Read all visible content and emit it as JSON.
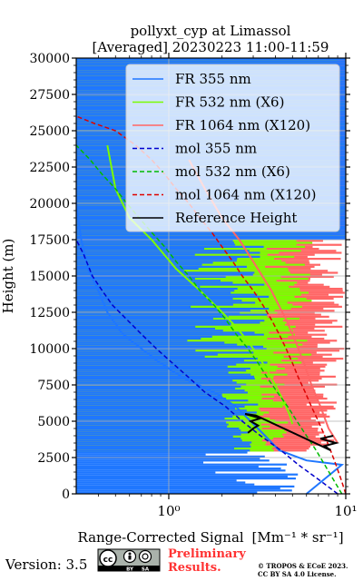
{
  "chart_data": {
    "type": "line",
    "title": "pollyxt_cyp at Limassol",
    "subtitle": "[Averaged] 20230223 11:00-11:59",
    "xlabel": "Range-Corrected Signal",
    "xlabel_unit": "[Mm⁻¹ * sr⁻¹]",
    "ylabel": "Height (m)",
    "xscale": "log",
    "xlim": [
      0.3,
      10
    ],
    "ylim": [
      0,
      30000
    ],
    "grid": true,
    "legend_position": "top-right",
    "x_ticks": [
      {
        "value": 1,
        "label": "10⁰"
      },
      {
        "value": 10,
        "label": "10¹"
      }
    ],
    "y_ticks": [
      0,
      2500,
      5000,
      7500,
      10000,
      12500,
      15000,
      17500,
      20000,
      22500,
      25000,
      27500,
      30000
    ],
    "y_tick_labels": [
      "0",
      "2500",
      "5000",
      "7500",
      "10000",
      "12500",
      "15000",
      "17500",
      "20000",
      "22500",
      "25000",
      "27500",
      "30000"
    ],
    "series": [
      {
        "name": "FR 355 nm",
        "color": "#1f77ff",
        "style": "solid",
        "points": [
          [
            6.0,
            0
          ],
          [
            9.5,
            2000
          ],
          [
            6.0,
            2300
          ],
          [
            4.2,
            3000
          ],
          [
            3.5,
            4000
          ],
          [
            2.9,
            5000
          ],
          [
            2.4,
            6000
          ],
          [
            1.8,
            7000
          ],
          [
            1.2,
            8000
          ],
          [
            0.9,
            9000
          ],
          [
            0.7,
            10000
          ],
          [
            0.55,
            11000
          ],
          [
            0.45,
            12500
          ],
          [
            0.4,
            14000
          ],
          [
            0.35,
            15500
          ],
          [
            0.32,
            17500
          ],
          [
            0.3,
            20000
          ],
          [
            0.3,
            25000
          ]
        ]
      },
      {
        "name": "FR 532 nm (X6)",
        "color": "#7cfc00",
        "style": "solid",
        "points": [
          [
            5.0,
            4800
          ],
          [
            4.8,
            5500
          ],
          [
            4.4,
            6500
          ],
          [
            4.0,
            7500
          ],
          [
            3.6,
            8500
          ],
          [
            3.2,
            9500
          ],
          [
            2.8,
            10500
          ],
          [
            2.4,
            11500
          ],
          [
            2.0,
            12500
          ],
          [
            1.5,
            14000
          ],
          [
            1.1,
            15500
          ],
          [
            0.8,
            17500
          ],
          [
            0.6,
            19000
          ],
          [
            0.5,
            21000
          ],
          [
            0.45,
            24000
          ]
        ]
      },
      {
        "name": "FR 1064 nm (X120)",
        "color": "#ff6666",
        "style": "solid",
        "points": [
          [
            9.0,
            3500
          ],
          [
            8.0,
            4500
          ],
          [
            7.2,
            6000
          ],
          [
            6.4,
            7500
          ],
          [
            5.8,
            9000
          ],
          [
            5.2,
            10500
          ],
          [
            4.6,
            12000
          ],
          [
            3.8,
            14000
          ],
          [
            3.0,
            16000
          ],
          [
            2.5,
            17500
          ],
          [
            2.0,
            19000
          ],
          [
            1.6,
            21000
          ],
          [
            1.3,
            23000
          ]
        ]
      },
      {
        "name": "mol 355 nm",
        "color": "#0000cc",
        "style": "dashed",
        "points": [
          [
            9.0,
            0
          ],
          [
            7.0,
            1000
          ],
          [
            5.4,
            2000
          ],
          [
            4.3,
            3000
          ],
          [
            3.3,
            4000
          ],
          [
            2.6,
            5000
          ],
          [
            2.1,
            6000
          ],
          [
            1.6,
            7000
          ],
          [
            1.3,
            8000
          ],
          [
            1.05,
            9000
          ],
          [
            0.85,
            10000
          ],
          [
            0.7,
            11000
          ],
          [
            0.58,
            12000
          ],
          [
            0.48,
            13000
          ],
          [
            0.42,
            14000
          ],
          [
            0.37,
            15000
          ],
          [
            0.33,
            16500
          ],
          [
            0.3,
            17500
          ]
        ]
      },
      {
        "name": "mol 532 nm (X6)",
        "color": "#00bb00",
        "style": "dashed",
        "points": [
          [
            9.5,
            0
          ],
          [
            8.5,
            1000
          ],
          [
            7.6,
            2000
          ],
          [
            6.8,
            3000
          ],
          [
            6.0,
            4000
          ],
          [
            5.3,
            5000
          ],
          [
            4.7,
            6000
          ],
          [
            4.1,
            7000
          ],
          [
            3.6,
            8000
          ],
          [
            3.2,
            9000
          ],
          [
            2.8,
            10000
          ],
          [
            2.4,
            11000
          ],
          [
            2.1,
            12000
          ],
          [
            1.8,
            13000
          ],
          [
            1.5,
            14000
          ],
          [
            1.3,
            15000
          ],
          [
            1.1,
            16000
          ],
          [
            0.95,
            17000
          ],
          [
            0.8,
            18000
          ],
          [
            0.68,
            19000
          ],
          [
            0.58,
            20000
          ],
          [
            0.5,
            21000
          ],
          [
            0.42,
            22000
          ],
          [
            0.36,
            23000
          ],
          [
            0.3,
            24000
          ]
        ]
      },
      {
        "name": "mol 1064 nm (X120)",
        "color": "#dd0000",
        "style": "dashed",
        "points": [
          [
            10.0,
            0
          ],
          [
            9.4,
            1000
          ],
          [
            8.8,
            2000
          ],
          [
            8.2,
            3000
          ],
          [
            7.6,
            4000
          ],
          [
            7.0,
            5000
          ],
          [
            6.4,
            6000
          ],
          [
            5.9,
            7000
          ],
          [
            5.4,
            8000
          ],
          [
            5.0,
            9000
          ],
          [
            4.6,
            10000
          ],
          [
            4.2,
            11000
          ],
          [
            3.8,
            12000
          ],
          [
            3.4,
            13000
          ],
          [
            3.0,
            14000
          ],
          [
            2.6,
            15000
          ],
          [
            2.3,
            16000
          ],
          [
            2.0,
            17000
          ],
          [
            1.75,
            18000
          ],
          [
            1.5,
            19000
          ],
          [
            1.3,
            20000
          ],
          [
            1.1,
            21000
          ],
          [
            0.95,
            22000
          ],
          [
            0.8,
            23000
          ],
          [
            0.65,
            24000
          ],
          [
            0.5,
            25000
          ],
          [
            0.38,
            25500
          ],
          [
            0.3,
            26000
          ]
        ]
      },
      {
        "name": "Reference Height",
        "color": "#000000",
        "style": "solid",
        "points": [
          [
            2.8,
            4200
          ],
          [
            3.0,
            4500
          ],
          [
            3.2,
            4700
          ],
          [
            2.9,
            5000
          ],
          [
            3.3,
            5200
          ],
          [
            2.7,
            5500
          ],
          [
            3.1,
            5400
          ],
          [
            8.2,
            3000
          ],
          [
            7.6,
            3300
          ],
          [
            8.8,
            3500
          ],
          [
            7.2,
            3800
          ],
          [
            8.5,
            4000
          ]
        ]
      }
    ]
  },
  "footer": {
    "version": "Version: 3.5",
    "license_badge": [
      "cc",
      "BY",
      "SA"
    ],
    "preliminary_line1": "Preliminary",
    "preliminary_line2": "Results.",
    "copyright_line1": "© TROPOS & ECoE 2023.",
    "copyright_line2": "CC BY SA 4.0 License."
  },
  "colors": {
    "preliminary": "#ff3333"
  }
}
